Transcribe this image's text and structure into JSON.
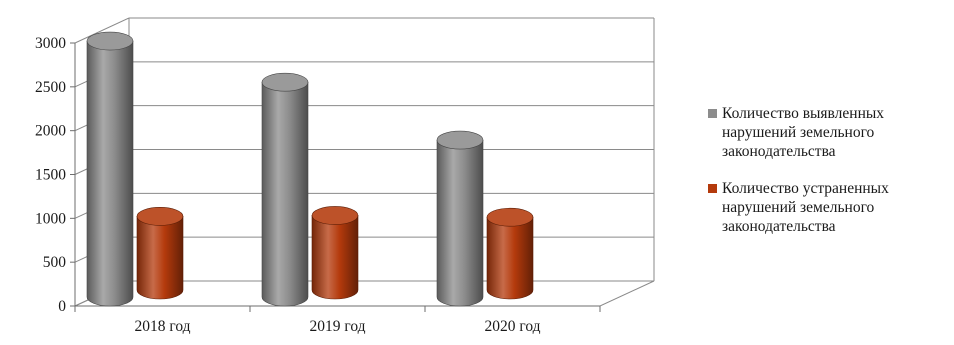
{
  "chart_data": {
    "type": "bar",
    "style": "3d-cylinder",
    "categories": [
      "2018 год",
      "2019 год",
      "2020 год"
    ],
    "series": [
      {
        "name": "Количество выявленных нарушений земельного законодательства",
        "color": "#8c8c8c",
        "values": [
          2920,
          2450,
          1790
        ]
      },
      {
        "name": "Количество устраненных нарушений земельного законодательства",
        "color": "#b43a0c",
        "values": [
          840,
          850,
          830
        ]
      }
    ],
    "y_ticks": [
      "0",
      "500",
      "1000",
      "1500",
      "2000",
      "2500",
      "3000"
    ],
    "ylim": [
      0,
      3000
    ],
    "grid": true,
    "legend_position": "right"
  }
}
